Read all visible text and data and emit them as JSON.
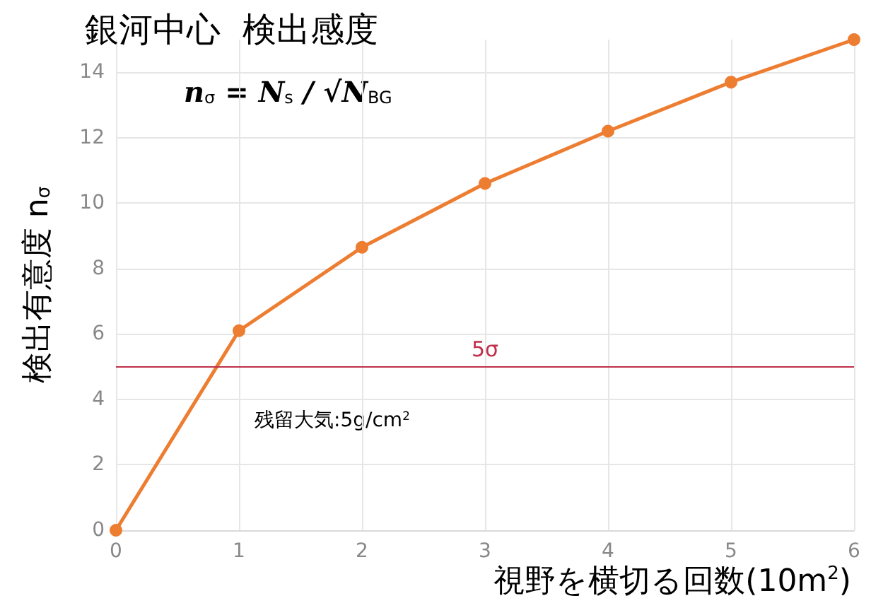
{
  "chart_data": {
    "type": "line",
    "title": "銀河中心  検出感度",
    "xlabel": "視野を横切る回数(10m$^{2}$)",
    "ylabel": "検出有意度 n$_{σ}$",
    "annotations": [
      "n$_{σ}$ = N$_{s}$ / √N$_{BG}$",
      "残留大気:5g/cm$^{2}$"
    ],
    "x": [
      0,
      1,
      2,
      3,
      4,
      5,
      6
    ],
    "series": [
      {
        "color": "#ed7d31",
        "values": [
          0,
          6.1,
          8.65,
          10.6,
          12.2,
          13.7,
          15.0
        ]
      }
    ],
    "xlim": [
      0,
      6
    ],
    "xticks": [
      0,
      1,
      2,
      3,
      4,
      5,
      6
    ],
    "ylim": [
      0,
      15
    ],
    "yticks": [
      0,
      2,
      4,
      6,
      8,
      10,
      12,
      14
    ],
    "ref_lines": [
      {
        "axis": "y",
        "value": 5,
        "label": "5σ",
        "color": "#c0304a"
      }
    ],
    "grid": true,
    "marker": "circle",
    "line_style": "solid"
  }
}
